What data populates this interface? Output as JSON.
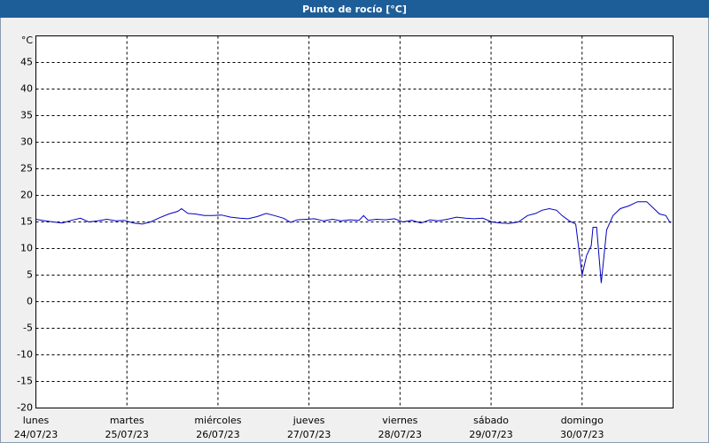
{
  "chart_data": {
    "type": "line",
    "title": "Punto de rocío [°C]",
    "y_unit": "°C",
    "xlim": [
      0,
      7
    ],
    "xticks": [
      {
        "value": 0,
        "label": "lunes",
        "date": "24/07/23"
      },
      {
        "value": 1,
        "label": "martes",
        "date": "25/07/23"
      },
      {
        "value": 2,
        "label": "miércoles",
        "date": "26/07/23"
      },
      {
        "value": 3,
        "label": "jueves",
        "date": "27/07/23"
      },
      {
        "value": 4,
        "label": "viernes",
        "date": "28/07/23"
      },
      {
        "value": 5,
        "label": "sábado",
        "date": "29/07/23"
      },
      {
        "value": 6,
        "label": "domingo",
        "date": "30/07/23"
      }
    ],
    "ylim": [
      -20,
      50
    ],
    "yticks": [
      -20,
      -15,
      -10,
      -5,
      0,
      5,
      10,
      15,
      20,
      25,
      30,
      35,
      40,
      45
    ],
    "grid": true,
    "series": [
      {
        "color": "#0000c0",
        "x": [
          0.0,
          0.1,
          0.19,
          0.29,
          0.39,
          0.49,
          0.58,
          0.68,
          0.78,
          0.88,
          0.97,
          1.07,
          1.17,
          1.26,
          1.36,
          1.46,
          1.56,
          1.6,
          1.67,
          1.75,
          1.85,
          1.94,
          2.04,
          2.14,
          2.24,
          2.33,
          2.43,
          2.53,
          2.62,
          2.72,
          2.8,
          2.87,
          2.97,
          3.06,
          3.16,
          3.26,
          3.35,
          3.45,
          3.55,
          3.6,
          3.65,
          3.74,
          3.84,
          3.94,
          4.03,
          4.13,
          4.23,
          4.33,
          4.42,
          4.52,
          4.62,
          4.72,
          4.81,
          4.91,
          5.01,
          5.1,
          5.2,
          5.3,
          5.4,
          5.49,
          5.56,
          5.64,
          5.72,
          5.78,
          5.86,
          5.93,
          6.0,
          6.05,
          6.1,
          6.12,
          6.16,
          6.21,
          6.27,
          6.34,
          6.42,
          6.51,
          6.61,
          6.71,
          6.79,
          6.85,
          6.92,
          6.97
        ],
        "values": [
          15.5,
          15.2,
          15,
          14.8,
          15.3,
          15.7,
          15,
          15.2,
          15.5,
          15.2,
          15.3,
          14.8,
          14.6,
          15,
          15.8,
          16.5,
          17,
          17.5,
          16.6,
          16.5,
          16.2,
          16.2,
          16.3,
          15.9,
          15.7,
          15.6,
          16,
          16.6,
          16.2,
          15.7,
          14.9,
          15.4,
          15.5,
          15.6,
          15.2,
          15.5,
          15.2,
          15.4,
          15.3,
          16.2,
          15.3,
          15.5,
          15.4,
          15.6,
          15,
          15.3,
          14.8,
          15.4,
          15.2,
          15.5,
          15.9,
          15.7,
          15.6,
          15.7,
          15,
          14.8,
          14.7,
          15,
          16.2,
          16.6,
          17.2,
          17.5,
          17.2,
          16.2,
          15.2,
          14.6,
          5,
          8.7,
          10.5,
          14,
          14,
          3.5,
          13.5,
          16.2,
          17.5,
          18,
          18.8,
          18.8,
          17.5,
          16.5,
          16.2,
          14.8
        ]
      }
    ]
  }
}
